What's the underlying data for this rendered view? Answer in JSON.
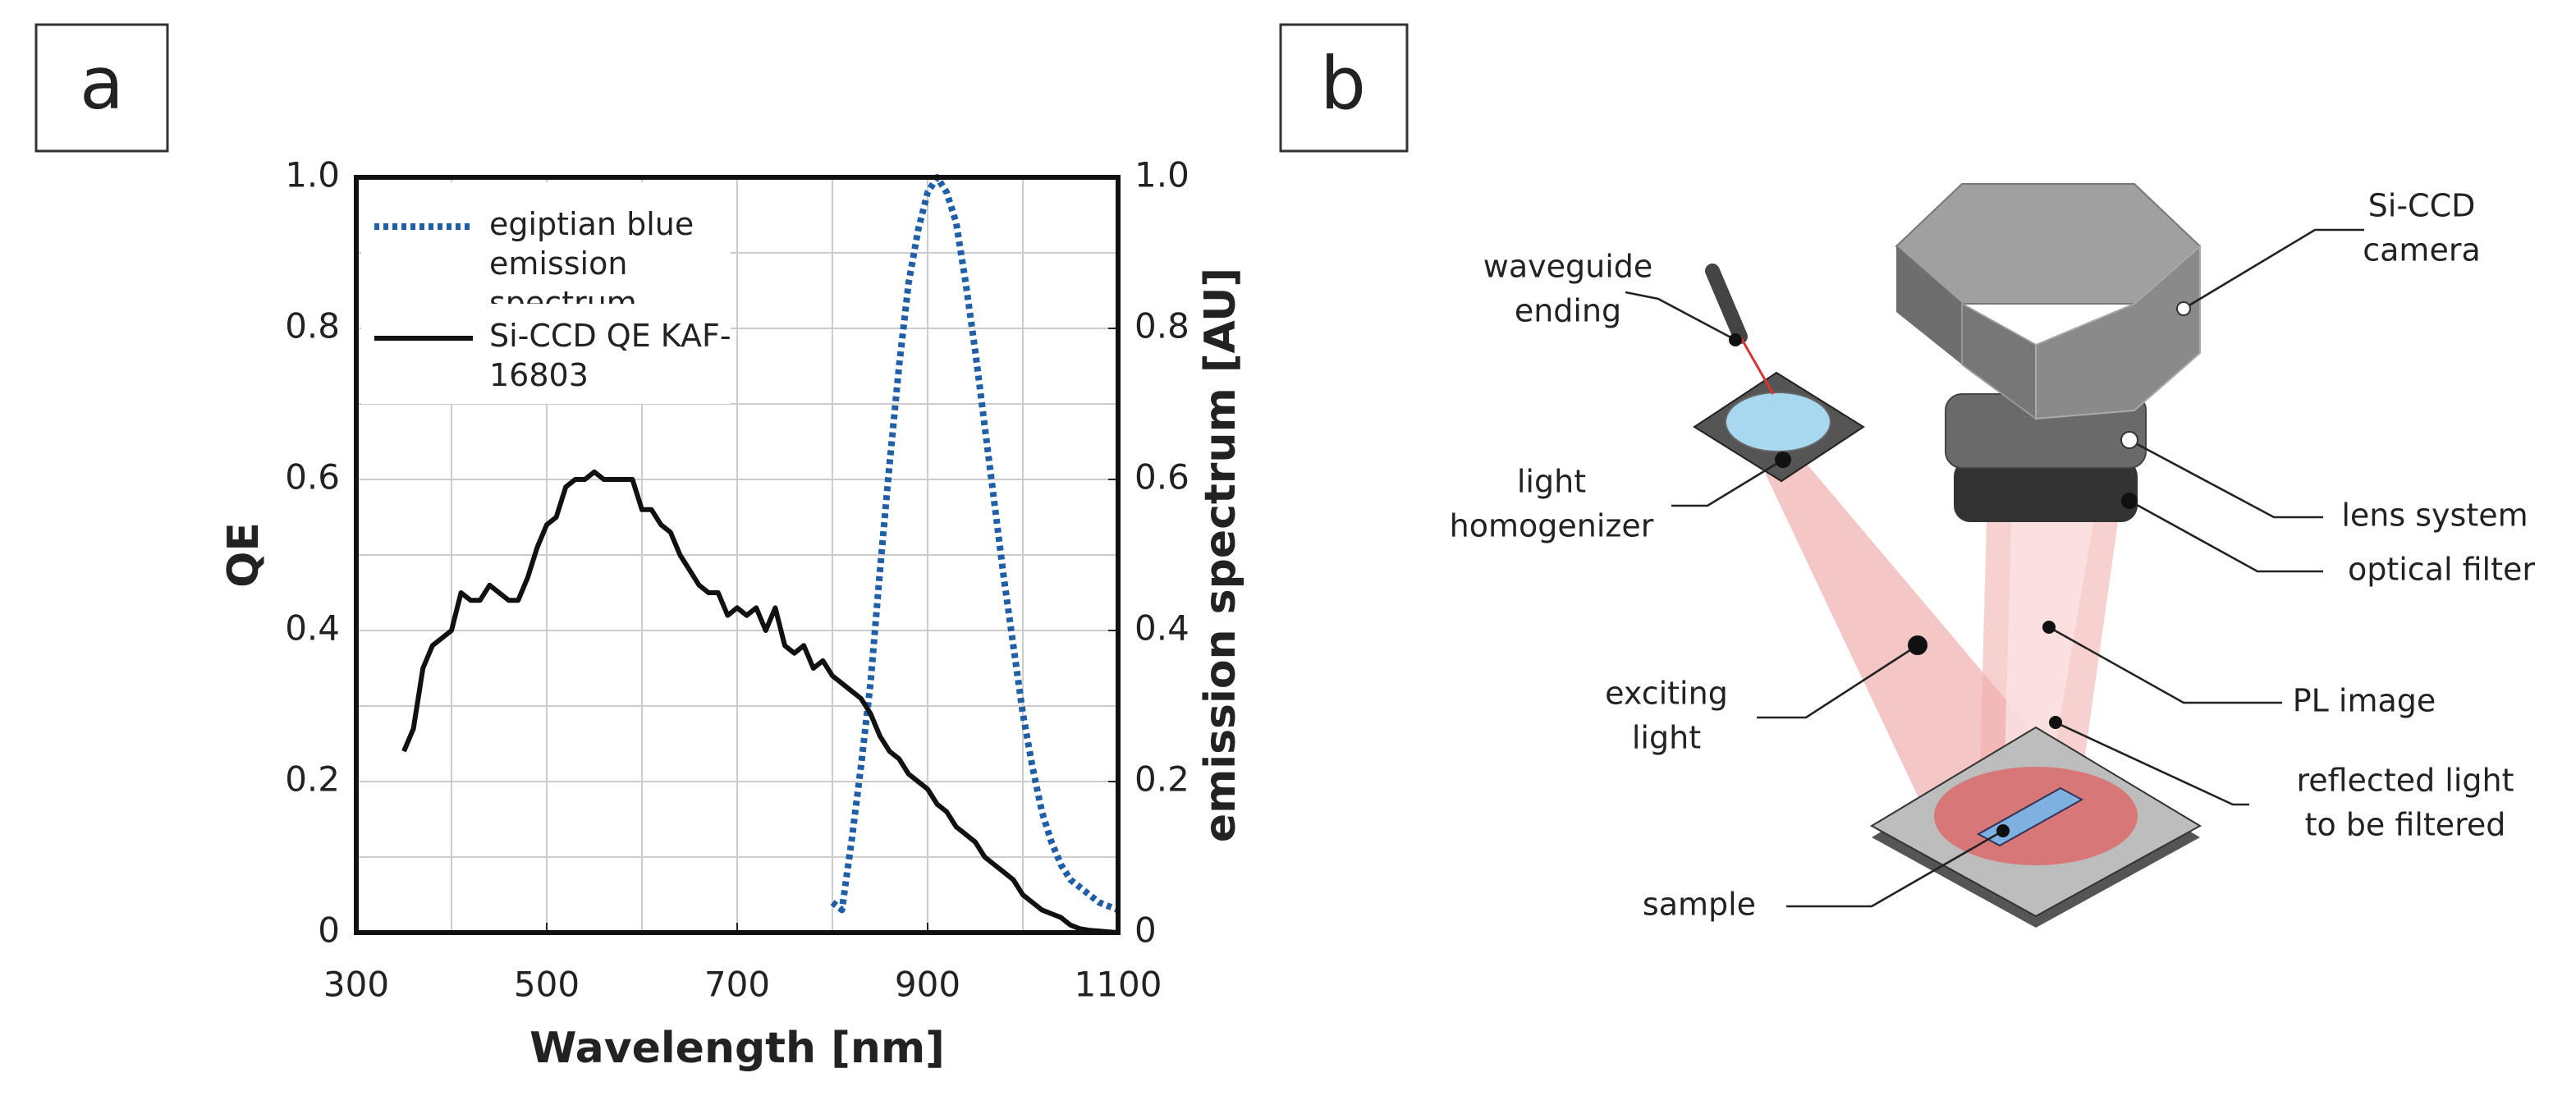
{
  "panels": [
    "a",
    "b"
  ],
  "chart_data": {
    "type": "line",
    "xlabel": "Wavelength [nm]",
    "ylabel": "QE",
    "y2label": "emission spectrum [AU]",
    "xlim": [
      300,
      1100
    ],
    "xticks": [
      300,
      500,
      700,
      900,
      1100
    ],
    "xminor": [
      400,
      600,
      800,
      1000
    ],
    "ylim": [
      0,
      1
    ],
    "yticks": [
      0,
      0.2,
      0.4,
      0.6,
      0.8,
      {
        "value": 1,
        "label": "1.0"
      }
    ],
    "yminor": [
      0.1,
      0.3,
      0.5,
      0.7,
      0.9
    ],
    "y2lim": [
      0,
      1
    ],
    "y2ticks": [
      0,
      0.2,
      0.4,
      0.6,
      0.8,
      {
        "value": 1,
        "label": "1.0"
      }
    ],
    "grid": true,
    "legend": "upper left",
    "series": [
      {
        "name": "egiptian blue emission spectrum",
        "color": "#1f5fa8",
        "linestyle": "dotted",
        "axis": "y2",
        "x": [
          800,
          810,
          820,
          830,
          840,
          850,
          860,
          870,
          880,
          890,
          900,
          910,
          920,
          930,
          940,
          950,
          960,
          970,
          980,
          990,
          1000,
          1010,
          1020,
          1030,
          1040,
          1050,
          1060,
          1070,
          1080,
          1090,
          1100
        ],
        "values": [
          0.04,
          0.03,
          0.12,
          0.22,
          0.33,
          0.48,
          0.62,
          0.75,
          0.86,
          0.93,
          0.98,
          1.0,
          0.98,
          0.94,
          0.86,
          0.77,
          0.67,
          0.57,
          0.47,
          0.38,
          0.29,
          0.22,
          0.16,
          0.12,
          0.09,
          0.07,
          0.06,
          0.05,
          0.04,
          0.035,
          0.03
        ]
      },
      {
        "name": "Si-CCD QE KAF-16803",
        "color": "#111111",
        "linestyle": "solid",
        "axis": "y",
        "x": [
          350,
          360,
          370,
          380,
          390,
          400,
          410,
          420,
          430,
          440,
          450,
          460,
          470,
          480,
          490,
          500,
          510,
          520,
          530,
          540,
          550,
          560,
          570,
          580,
          590,
          600,
          610,
          620,
          630,
          640,
          650,
          660,
          670,
          680,
          690,
          700,
          710,
          720,
          730,
          740,
          750,
          760,
          770,
          780,
          790,
          800,
          810,
          820,
          830,
          840,
          850,
          860,
          870,
          880,
          890,
          900,
          910,
          920,
          930,
          940,
          950,
          960,
          970,
          980,
          990,
          1000,
          1010,
          1020,
          1030,
          1040,
          1050,
          1060,
          1070,
          1080,
          1090,
          1100
        ],
        "values": [
          0.24,
          0.27,
          0.35,
          0.38,
          0.39,
          0.4,
          0.45,
          0.44,
          0.44,
          0.46,
          0.45,
          0.44,
          0.44,
          0.47,
          0.51,
          0.54,
          0.55,
          0.59,
          0.6,
          0.6,
          0.61,
          0.6,
          0.6,
          0.6,
          0.6,
          0.56,
          0.56,
          0.54,
          0.53,
          0.5,
          0.48,
          0.46,
          0.45,
          0.45,
          0.42,
          0.43,
          0.42,
          0.43,
          0.4,
          0.43,
          0.38,
          0.37,
          0.38,
          0.35,
          0.36,
          0.34,
          0.33,
          0.32,
          0.31,
          0.29,
          0.26,
          0.24,
          0.23,
          0.21,
          0.2,
          0.19,
          0.17,
          0.16,
          0.14,
          0.13,
          0.12,
          0.1,
          0.09,
          0.08,
          0.07,
          0.05,
          0.04,
          0.03,
          0.025,
          0.02,
          0.01,
          0.005,
          0.003,
          0.002,
          0.001,
          0
        ]
      }
    ]
  },
  "diagram": {
    "labels": [
      {
        "lines": [
          "Si-CCD",
          "camera"
        ]
      },
      {
        "lines": [
          "waveguide",
          "ending"
        ]
      },
      {
        "lines": [
          "light",
          "homogenizer"
        ]
      },
      {
        "lines": [
          "lens system"
        ]
      },
      {
        "lines": [
          "optical filter"
        ]
      },
      {
        "lines": [
          "exciting",
          "light"
        ]
      },
      {
        "lines": [
          "PL image"
        ]
      },
      {
        "lines": [
          "reflected light",
          "to be filtered"
        ]
      },
      {
        "lines": [
          "sample"
        ]
      }
    ]
  }
}
